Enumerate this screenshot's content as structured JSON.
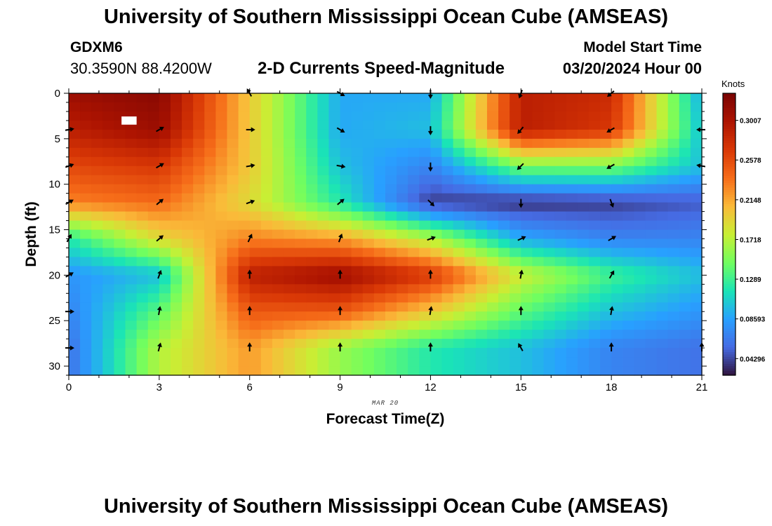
{
  "header": {
    "title": "University of Southern Mississippi Ocean Cube (AMSEAS)",
    "station": "GDXM6",
    "coordinates": "30.3590N  88.4200W",
    "variable_title": "2-D Currents Speed-Magnitude",
    "start_label": "Model Start Time",
    "start_value": "03/20/2024 Hour 00"
  },
  "footer": {
    "title": "University of Southern Mississippi Ocean Cube (AMSEAS)"
  },
  "chart_data": {
    "type": "heatmap",
    "title": "2-D Currents Speed-Magnitude",
    "xlabel": "Forecast Time(Z)",
    "ylabel": "Depth (ft)",
    "date_label": "MAR 20",
    "xlim": [
      0,
      21
    ],
    "ylim": [
      0,
      31
    ],
    "y_inverted": true,
    "xticks": [
      0,
      3,
      6,
      9,
      12,
      15,
      18,
      21
    ],
    "yticks": [
      0,
      5,
      10,
      15,
      20,
      25,
      30
    ],
    "colorbar": {
      "unit": "Knots",
      "range": [
        0.025,
        0.33
      ],
      "ticks": [
        "0.04296",
        "0.08593",
        "0.1289",
        "0.1718",
        "0.2148",
        "0.2578",
        "0.3007"
      ],
      "tick_values": [
        0.04296,
        0.08593,
        0.1289,
        0.1718,
        0.2148,
        0.2578,
        0.3007
      ]
    },
    "vector_times": [
      0,
      3,
      6,
      9,
      12,
      15,
      18,
      21
    ],
    "vector_depths": [
      0,
      4,
      8,
      12,
      16,
      20,
      24,
      28
    ],
    "speed_knots": [
      [
        0.31,
        0.32,
        0.2,
        0.09,
        0.09,
        0.29,
        0.28,
        0.09
      ],
      [
        0.29,
        0.31,
        0.2,
        0.09,
        0.1,
        0.29,
        0.27,
        0.1
      ],
      [
        0.26,
        0.27,
        0.2,
        0.1,
        0.07,
        0.15,
        0.15,
        0.1
      ],
      [
        0.23,
        0.24,
        0.19,
        0.12,
        0.04,
        0.035,
        0.04,
        0.05
      ],
      [
        0.12,
        0.19,
        0.23,
        0.22,
        0.17,
        0.09,
        0.07,
        0.07
      ],
      [
        0.08,
        0.1,
        0.29,
        0.31,
        0.27,
        0.18,
        0.13,
        0.1
      ],
      [
        0.07,
        0.14,
        0.25,
        0.25,
        0.2,
        0.14,
        0.1,
        0.08
      ],
      [
        0.06,
        0.17,
        0.22,
        0.16,
        0.12,
        0.1,
        0.07,
        0.06
      ]
    ],
    "direction_deg": [
      [
        null,
        null,
        330,
        120,
        180,
        200,
        230,
        null
      ],
      [
        80,
        60,
        90,
        120,
        180,
        220,
        240,
        270
      ],
      [
        70,
        60,
        80,
        100,
        180,
        225,
        240,
        280
      ],
      [
        60,
        50,
        70,
        50,
        135,
        180,
        160,
        null
      ],
      [
        30,
        50,
        25,
        20,
        70,
        65,
        60,
        null
      ],
      [
        60,
        20,
        0,
        0,
        0,
        10,
        30,
        null
      ],
      [
        90,
        10,
        0,
        0,
        10,
        0,
        10,
        null
      ],
      [
        90,
        15,
        0,
        0,
        0,
        330,
        0,
        0
      ]
    ],
    "missing_cell": {
      "time": 2.0,
      "depth": 3.0
    }
  }
}
